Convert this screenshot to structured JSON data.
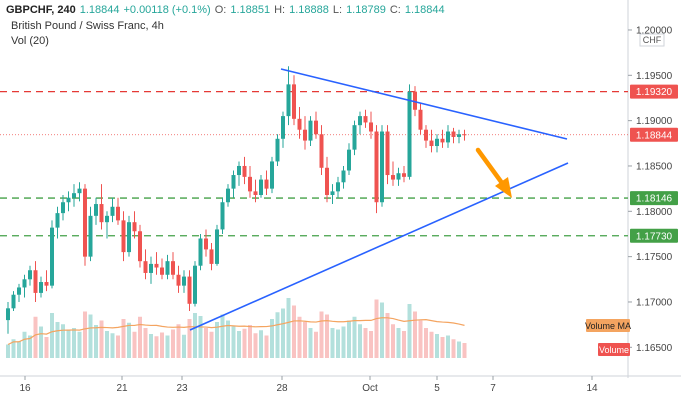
{
  "header": {
    "symbol": "GBPCHF, 240",
    "last": "1.18844",
    "change": "+0.00118 (+0.1%)",
    "o_label": "O:",
    "o_value": "1.18851",
    "h_label": "H:",
    "h_value": "1.18888",
    "l_label": "L:",
    "l_value": "1.18789",
    "c_label": "C:",
    "c_value": "1.18844"
  },
  "title": "British Pound / Swiss Franc, 4h",
  "vol_label": "Vol (20)",
  "currency_badge": "CHF",
  "colors": {
    "up": "#26a69a",
    "down": "#ef5350",
    "trendline": "#2962ff",
    "resistance": "#e53935",
    "support": "#43a047",
    "arrow": "#ff9800",
    "volume_ma": "#f4a460"
  },
  "chart_data": {
    "type": "candlestick",
    "y_ticks": [
      "1.20000",
      "1.19500",
      "1.19000",
      "1.18500",
      "1.18000",
      "1.17500",
      "1.17000",
      "1.16500"
    ],
    "y_range": [
      1.1636,
      1.2011
    ],
    "x_ticks": [
      "16",
      "21",
      "23",
      "28",
      "Oct",
      "5",
      "7",
      "14"
    ],
    "price_labels": [
      {
        "value": 1.1932,
        "text": "1.19320",
        "kind": "resistance"
      },
      {
        "value": 1.18844,
        "text": "1.18844",
        "kind": "last"
      },
      {
        "value": 1.18146,
        "text": "1.18146",
        "kind": "support"
      },
      {
        "value": 1.1773,
        "text": "1.17730",
        "kind": "support"
      }
    ],
    "volume_labels": [
      "Volume MA",
      "Volume"
    ],
    "trendlines": [
      {
        "from": [
          1.1975,
          0.0
        ],
        "to": [
          1.189,
          1.0
        ],
        "name": "upper"
      },
      {
        "from": [
          1.1665,
          0.0
        ],
        "to": [
          1.1865,
          1.0
        ],
        "name": "lower"
      }
    ],
    "candles": [
      [
        1.168,
        1.17,
        1.1665,
        1.1693
      ],
      [
        1.1693,
        1.1712,
        1.169,
        1.1708
      ],
      [
        1.1708,
        1.172,
        1.17,
        1.1716
      ],
      [
        1.1716,
        1.173,
        1.1705,
        1.1725
      ],
      [
        1.1725,
        1.174,
        1.1718,
        1.1735
      ],
      [
        1.1735,
        1.1745,
        1.17,
        1.171
      ],
      [
        1.171,
        1.1728,
        1.1705,
        1.1722
      ],
      [
        1.1722,
        1.1735,
        1.1712,
        1.1718
      ],
      [
        1.1718,
        1.179,
        1.1715,
        1.1782
      ],
      [
        1.1782,
        1.1805,
        1.177,
        1.1798
      ],
      [
        1.1798,
        1.1818,
        1.179,
        1.181
      ],
      [
        1.181,
        1.1822,
        1.18,
        1.1815
      ],
      [
        1.1815,
        1.183,
        1.1805,
        1.182
      ],
      [
        1.182,
        1.1832,
        1.1811,
        1.1825
      ],
      [
        1.1825,
        1.183,
        1.174,
        1.175
      ],
      [
        1.175,
        1.1805,
        1.1745,
        1.1795
      ],
      [
        1.1795,
        1.1815,
        1.1785,
        1.1808
      ],
      [
        1.1808,
        1.183,
        1.178,
        1.1788
      ],
      [
        1.1788,
        1.18,
        1.177,
        1.1795
      ],
      [
        1.1795,
        1.1815,
        1.1788,
        1.1805
      ],
      [
        1.1805,
        1.1815,
        1.1785,
        1.179
      ],
      [
        1.179,
        1.18,
        1.1745,
        1.1755
      ],
      [
        1.1755,
        1.1795,
        1.175,
        1.1788
      ],
      [
        1.1788,
        1.18,
        1.177,
        1.1778
      ],
      [
        1.1778,
        1.1785,
        1.1738,
        1.1745
      ],
      [
        1.1745,
        1.1758,
        1.1725,
        1.1732
      ],
      [
        1.1732,
        1.175,
        1.172,
        1.1742
      ],
      [
        1.1742,
        1.1755,
        1.173,
        1.1738
      ],
      [
        1.1738,
        1.1748,
        1.1725,
        1.173
      ],
      [
        1.173,
        1.1752,
        1.1725,
        1.1745
      ],
      [
        1.1745,
        1.1755,
        1.1725,
        1.173
      ],
      [
        1.173,
        1.174,
        1.171,
        1.1718
      ],
      [
        1.1718,
        1.1735,
        1.171,
        1.1728
      ],
      [
        1.1728,
        1.1735,
        1.169,
        1.1698
      ],
      [
        1.1698,
        1.1745,
        1.1695,
        1.174
      ],
      [
        1.174,
        1.1775,
        1.1735,
        1.177
      ],
      [
        1.177,
        1.178,
        1.175,
        1.1758
      ],
      [
        1.1758,
        1.1765,
        1.1735,
        1.1742
      ],
      [
        1.1742,
        1.1785,
        1.174,
        1.178
      ],
      [
        1.178,
        1.1815,
        1.1775,
        1.181
      ],
      [
        1.181,
        1.183,
        1.1805,
        1.1825
      ],
      [
        1.1825,
        1.1845,
        1.1815,
        1.184
      ],
      [
        1.184,
        1.1855,
        1.1828,
        1.185
      ],
      [
        1.185,
        1.186,
        1.183,
        1.1838
      ],
      [
        1.1838,
        1.185,
        1.1815,
        1.1822
      ],
      [
        1.1822,
        1.1835,
        1.181,
        1.1818
      ],
      [
        1.1818,
        1.184,
        1.1815,
        1.1835
      ],
      [
        1.1835,
        1.1845,
        1.1818,
        1.1825
      ],
      [
        1.1825,
        1.186,
        1.182,
        1.1855
      ],
      [
        1.1855,
        1.1885,
        1.185,
        1.188
      ],
      [
        1.188,
        1.191,
        1.187,
        1.1905
      ],
      [
        1.1905,
        1.196,
        1.1895,
        1.194
      ],
      [
        1.194,
        1.195,
        1.1895,
        1.1902
      ],
      [
        1.1902,
        1.1915,
        1.188,
        1.189
      ],
      [
        1.189,
        1.1905,
        1.1868,
        1.1878
      ],
      [
        1.1878,
        1.1905,
        1.1872,
        1.19
      ],
      [
        1.19,
        1.191,
        1.188,
        1.1885
      ],
      [
        1.1885,
        1.1895,
        1.184,
        1.1848
      ],
      [
        1.1848,
        1.186,
        1.181,
        1.1818
      ],
      [
        1.1818,
        1.183,
        1.1808,
        1.1822
      ],
      [
        1.1822,
        1.1838,
        1.1815,
        1.1832
      ],
      [
        1.1832,
        1.185,
        1.1825,
        1.1845
      ],
      [
        1.1845,
        1.1875,
        1.184,
        1.1868
      ],
      [
        1.1868,
        1.19,
        1.1862,
        1.1895
      ],
      [
        1.1895,
        1.191,
        1.1885,
        1.1905
      ],
      [
        1.1905,
        1.1912,
        1.1892,
        1.1898
      ],
      [
        1.1898,
        1.191,
        1.188,
        1.1888
      ],
      [
        1.1888,
        1.1895,
        1.1798,
        1.181
      ],
      [
        1.181,
        1.1895,
        1.1805,
        1.1888
      ],
      [
        1.1888,
        1.1895,
        1.183,
        1.184
      ],
      [
        1.184,
        1.1855,
        1.1828,
        1.1835
      ],
      [
        1.1835,
        1.1848,
        1.1828,
        1.1842
      ],
      [
        1.1842,
        1.185,
        1.1832,
        1.1838
      ],
      [
        1.1838,
        1.194,
        1.1835,
        1.1932
      ],
      [
        1.1932,
        1.1938,
        1.1905,
        1.1912
      ],
      [
        1.1912,
        1.192,
        1.1885,
        1.189
      ],
      [
        1.189,
        1.1895,
        1.187,
        1.1878
      ],
      [
        1.1878,
        1.189,
        1.1865,
        1.1872
      ],
      [
        1.1872,
        1.1885,
        1.1865,
        1.188
      ],
      [
        1.188,
        1.189,
        1.187,
        1.1876
      ],
      [
        1.1876,
        1.1895,
        1.187,
        1.1888
      ],
      [
        1.1888,
        1.1892,
        1.1875,
        1.1882
      ],
      [
        1.1882,
        1.189,
        1.1875,
        1.1885
      ],
      [
        1.1885,
        1.189,
        1.1878,
        1.1884
      ]
    ],
    "volume": [
      0.18,
      0.25,
      0.22,
      0.35,
      0.3,
      0.55,
      0.42,
      0.28,
      0.6,
      0.48,
      0.45,
      0.38,
      0.4,
      0.35,
      0.62,
      0.58,
      0.44,
      0.5,
      0.36,
      0.33,
      0.3,
      0.52,
      0.47,
      0.35,
      0.55,
      0.4,
      0.32,
      0.29,
      0.34,
      0.3,
      0.38,
      0.45,
      0.31,
      0.52,
      0.6,
      0.56,
      0.4,
      0.35,
      0.48,
      0.58,
      0.5,
      0.42,
      0.36,
      0.39,
      0.44,
      0.33,
      0.37,
      0.3,
      0.52,
      0.61,
      0.66,
      0.8,
      0.7,
      0.55,
      0.48,
      0.4,
      0.35,
      0.62,
      0.58,
      0.4,
      0.38,
      0.42,
      0.5,
      0.55,
      0.45,
      0.4,
      0.36,
      0.78,
      0.74,
      0.6,
      0.45,
      0.4,
      0.36,
      0.72,
      0.62,
      0.5,
      0.4,
      0.35,
      0.32,
      0.28,
      0.3,
      0.25,
      0.22,
      0.2
    ]
  }
}
